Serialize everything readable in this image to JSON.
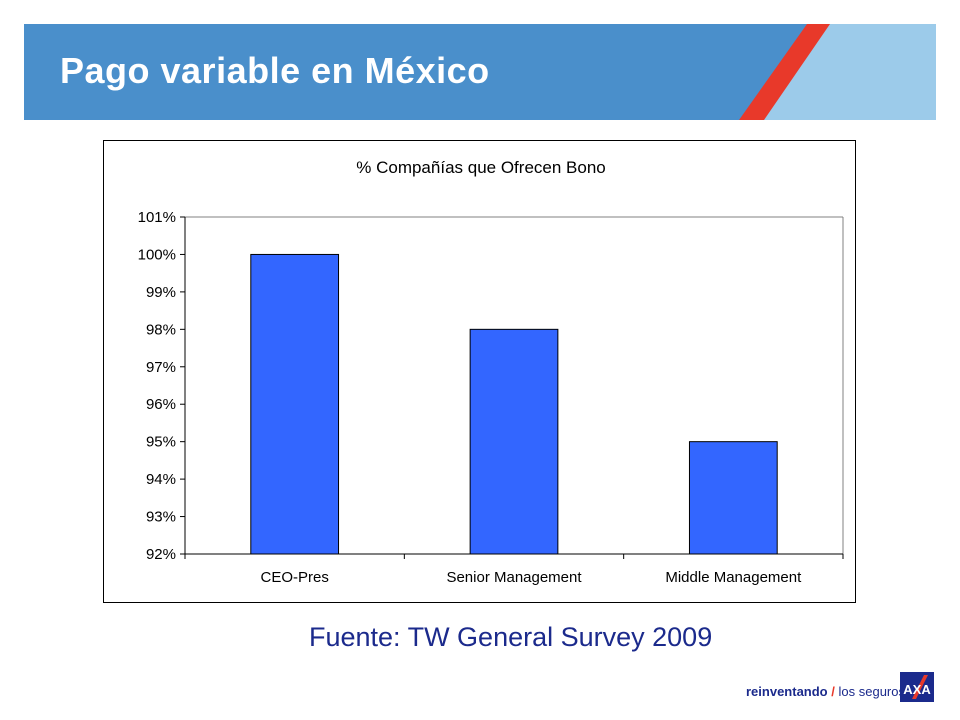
{
  "slide": {
    "title": "Pago variable en México",
    "source": "Fuente: TW General Survey 2009"
  },
  "brand": {
    "tagline_bold": "reinventando",
    "tagline_rest": "los seguros",
    "logo_text": "AXA",
    "logo_color": "#1b2a8c",
    "logo_accent": "#e8392a"
  },
  "colors": {
    "header_blue": "#4a8fcb",
    "header_light": "#9ccbea",
    "header_stripe": "#e8392a",
    "bar_fill": "#3366ff"
  },
  "chart_data": {
    "type": "bar",
    "title": "% Compañías que Ofrecen Bono",
    "categories": [
      "CEO-Pres",
      "Senior Management",
      "Middle Management"
    ],
    "values": [
      100,
      98,
      95
    ],
    "ylim": [
      92,
      101
    ],
    "yticks": [
      92,
      93,
      94,
      95,
      96,
      97,
      98,
      99,
      100,
      101
    ],
    "ytick_labels": [
      "92%",
      "93%",
      "94%",
      "95%",
      "96%",
      "97%",
      "98%",
      "99%",
      "100%",
      "101%"
    ],
    "xlabel": "",
    "ylabel": "",
    "grid": false,
    "legend": "none"
  }
}
